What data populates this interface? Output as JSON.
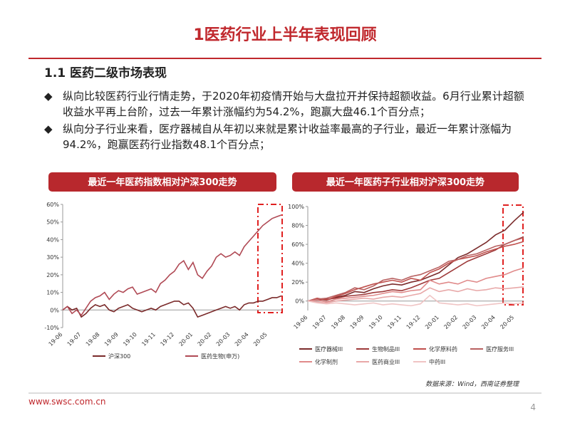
{
  "title": "1医药行业上半年表现回顾",
  "section": "1.1 医药二级市场表现",
  "bullets": [
    "纵向比较医药行业行情走势，于2020年初疫情开始与大盘拉开并保持超额收益。6月行业累计超额收益水平再上台阶，过去一年累计涨幅约为54.2%，跑赢大盘46.1个百分点；",
    "纵向分子行业来看，医疗器械自从年初以来就是累计收益率最高的子行业，最近一年累计涨幅为94.2%，跑赢医药行业指数48.1个百分点；"
  ],
  "chart_data": [
    {
      "type": "line",
      "title": "最近一年医药指数相对沪深300走势",
      "categories": [
        "19-06",
        null,
        null,
        null,
        "19-07",
        null,
        null,
        null,
        "19-08",
        null,
        null,
        null,
        "19-09",
        null,
        null,
        null,
        "19-10",
        null,
        null,
        null,
        "19-11",
        null,
        null,
        null,
        "19-12",
        null,
        null,
        null,
        "20-01",
        null,
        null,
        null,
        "20-02",
        null,
        null,
        null,
        "20-03",
        null,
        null,
        null,
        "20-04",
        null,
        null,
        null,
        "20-05",
        null,
        null,
        null
      ],
      "series": [
        {
          "name": "沪深300",
          "color": "#7a2a2a",
          "values": [
            0,
            2,
            0,
            1,
            -4,
            -2,
            1,
            3,
            2,
            3,
            0,
            -1,
            1,
            2,
            3,
            1,
            0,
            -1,
            0,
            1,
            0,
            2,
            3,
            4,
            5,
            5,
            3,
            4,
            1,
            -4,
            -3,
            -2,
            -1,
            0,
            1,
            2,
            1,
            2,
            0,
            3,
            4,
            4,
            5,
            5,
            6,
            7,
            7,
            8
          ]
        },
        {
          "name": "医药生物(申万)",
          "color": "#b04a55",
          "values": [
            0,
            2,
            -2,
            0,
            -3,
            1,
            5,
            7,
            8,
            10,
            6,
            9,
            11,
            10,
            12,
            13,
            9,
            10,
            11,
            12,
            10,
            15,
            17,
            20,
            22,
            26,
            28,
            23,
            27,
            20,
            18,
            22,
            25,
            30,
            32,
            30,
            31,
            33,
            31,
            36,
            39,
            42,
            45,
            48,
            50,
            52,
            53,
            54
          ]
        }
      ],
      "ylim": [
        -10,
        60
      ],
      "yticks": [
        {
          "value": -10,
          "label": "-10%"
        },
        {
          "value": 0,
          "label": "0%"
        },
        {
          "value": 10,
          "label": "10%"
        },
        {
          "value": 20,
          "label": "20%"
        },
        {
          "value": 30,
          "label": "30%"
        },
        {
          "value": 40,
          "label": "40%"
        },
        {
          "value": 50,
          "label": "50%"
        },
        {
          "value": 60,
          "label": "60%"
        }
      ],
      "grid": false
    },
    {
      "type": "line",
      "title": "最近一年医药子行业相对沪深300走势",
      "categories": [
        "19-06",
        null,
        "19-07",
        null,
        "19-08",
        null,
        "19-09",
        null,
        "19-10",
        null,
        "19-11",
        null,
        "19-12",
        null,
        "20-01",
        null,
        "20-02",
        null,
        "20-03",
        null,
        "20-04",
        null,
        "20-05",
        null
      ],
      "series": [
        {
          "name": "医疗器械III",
          "color": "#7b2c2c",
          "values": [
            0,
            2,
            1,
            4,
            6,
            10,
            9,
            13,
            16,
            18,
            17,
            20,
            22,
            26,
            30,
            38,
            46,
            50,
            56,
            62,
            70,
            75,
            85,
            94
          ]
        },
        {
          "name": "生物制品III",
          "color": "#9e3a3a",
          "values": [
            0,
            1,
            2,
            3,
            5,
            6,
            7,
            9,
            10,
            12,
            11,
            14,
            18,
            22,
            24,
            30,
            36,
            42,
            46,
            50,
            54,
            60,
            64,
            68
          ]
        },
        {
          "name": "化学原料药",
          "color": "#c0504d",
          "values": [
            0,
            3,
            1,
            5,
            8,
            12,
            15,
            18,
            20,
            22,
            20,
            24,
            22,
            30,
            34,
            40,
            44,
            46,
            48,
            52,
            55,
            58,
            60,
            63
          ]
        },
        {
          "name": "医疗服务III",
          "color": "#b86060",
          "values": [
            0,
            2,
            3,
            6,
            9,
            14,
            12,
            16,
            22,
            24,
            22,
            26,
            28,
            32,
            36,
            42,
            44,
            48,
            50,
            54,
            58,
            60,
            64,
            67
          ]
        },
        {
          "name": "化学制剂",
          "color": "#e08a8a",
          "values": [
            0,
            1,
            -1,
            2,
            3,
            4,
            5,
            6,
            8,
            10,
            9,
            11,
            12,
            22,
            18,
            20,
            18,
            22,
            20,
            24,
            26,
            28,
            32,
            35
          ]
        },
        {
          "name": "医药商业III",
          "color": "#e8a8a8",
          "values": [
            0,
            -1,
            -2,
            0,
            1,
            2,
            3,
            2,
            4,
            5,
            4,
            6,
            8,
            14,
            10,
            12,
            10,
            13,
            11,
            12,
            14,
            13,
            14,
            15
          ]
        },
        {
          "name": "中药III",
          "color": "#f0c4c4",
          "values": [
            0,
            -2,
            -3,
            -2,
            -3,
            -4,
            -3,
            -2,
            -4,
            -3,
            -4,
            -5,
            -3,
            6,
            -2,
            -3,
            -4,
            -3,
            -5,
            -4,
            -3,
            -2,
            -3,
            -2
          ]
        }
      ],
      "ylim": [
        -10,
        100
      ],
      "yticks": [
        {
          "value": 0,
          "label": "0%"
        },
        {
          "value": 20,
          "label": "20%"
        },
        {
          "value": 40,
          "label": "40%"
        },
        {
          "value": 60,
          "label": "60%"
        },
        {
          "value": 80,
          "label": "80%"
        },
        {
          "value": 100,
          "label": "100%"
        }
      ],
      "grid": false
    }
  ],
  "source": "数据来源：Wind，西南证券整理",
  "footer": "www.swsc.com.cn",
  "page": "4"
}
